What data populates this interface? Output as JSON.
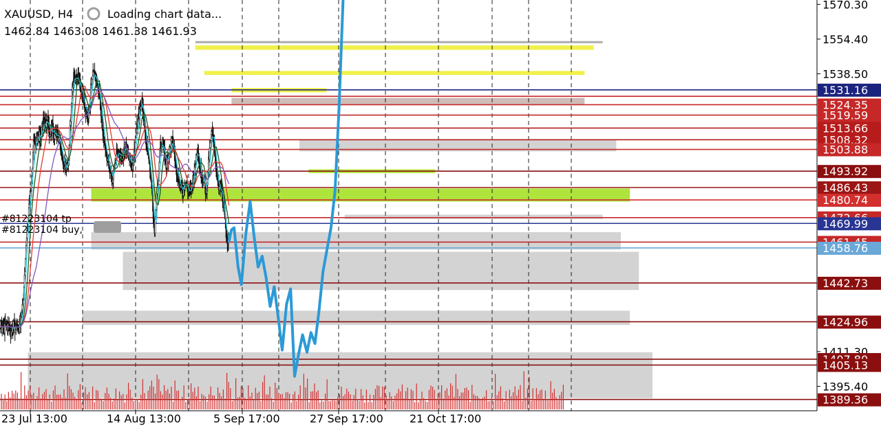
{
  "header": {
    "symbol_timeframe": "XAUUSD, H4",
    "loading_text": "Loading chart data...",
    "ohlc": "1462.84 1463.08 1461.38 1461.93"
  },
  "order_labels": [
    "#81223104 tp",
    "#81223104 buy,"
  ],
  "chart_data": {
    "type": "candlestick",
    "symbol": "XAUUSD",
    "timeframe": "H4",
    "y_range": [
      1384.2,
      1572.3
    ],
    "y_ticks": [
      1570.3,
      1554.4,
      1538.5,
      1411.3,
      1395.4
    ],
    "x_labels": [
      "23 Jul 13:00",
      "14 Aug 13:00",
      "5 Sep 17:00",
      "27 Sep 17:00",
      "21 Oct 17:00"
    ],
    "price_levels": [
      {
        "value": 1531.16,
        "label": "1531.16",
        "color": "#1a237e"
      },
      {
        "value": 1528.2,
        "label": "",
        "color": "#c62828"
      },
      {
        "value": 1524.35,
        "label": "1524.35",
        "color": "#c62828"
      },
      {
        "value": 1519.59,
        "label": "1519.59",
        "color": "#c62828"
      },
      {
        "value": 1513.66,
        "label": "1513.66",
        "color": "#b71c1c"
      },
      {
        "value": 1508.32,
        "label": "1508.32",
        "color": "#b71c1c"
      },
      {
        "value": 1503.88,
        "label": "1503.88",
        "color": "#c62828"
      },
      {
        "value": 1493.92,
        "label": "1493.92",
        "color": "#8b0f0f"
      },
      {
        "value": 1486.43,
        "label": "1486.43",
        "color": "#9c1616"
      },
      {
        "value": 1480.74,
        "label": "1480.74",
        "color": "#d32f2f"
      },
      {
        "value": 1472.66,
        "label": "1472.66",
        "color": "#c62828"
      },
      {
        "value": 1469.99,
        "label": "1469.99",
        "color": "#283593"
      },
      {
        "value": 1461.45,
        "label": "1461.45",
        "color": "#c62828"
      },
      {
        "value": 1458.76,
        "label": "1458.76",
        "color": "#6aa8d8"
      },
      {
        "value": 1442.73,
        "label": "1442.73",
        "color": "#8b0f0f"
      },
      {
        "value": 1424.96,
        "label": "1424.96",
        "color": "#8b0f0f"
      },
      {
        "value": 1407.8,
        "label": "1407.80",
        "color": "#8b0f0f"
      },
      {
        "value": 1405.13,
        "label": "1405.13",
        "color": "#8b0f0f"
      },
      {
        "value": 1389.36,
        "label": "1389.36",
        "color": "#8b0f0f"
      }
    ],
    "zones": [
      {
        "from": 1552.5,
        "to": 1553.5,
        "start": "29 Aug",
        "end": "27 Nov",
        "color": "#b0b0b0"
      },
      {
        "from": 1549.5,
        "to": 1551.5,
        "start": "29 Aug",
        "end": "25 Nov",
        "color": "#f0f04a"
      },
      {
        "from": 1538.0,
        "to": 1539.8,
        "start": "31 Aug",
        "end": "23 Nov",
        "color": "#f0f04a"
      },
      {
        "from": 1530.0,
        "to": 1532.0,
        "start": "6 Sep",
        "end": "27 Sep",
        "color": "#f0f04a"
      },
      {
        "from": 1524.5,
        "to": 1527.5,
        "start": "6 Sep",
        "end": "23 Nov",
        "color": "#cfbcb8"
      },
      {
        "from": 1503.0,
        "to": 1508.5,
        "start": "21 Sep",
        "end": "30 Nov",
        "color": "#d3d3d3"
      },
      {
        "from": 1493.0,
        "to": 1494.8,
        "start": "23 Sep",
        "end": "21 Oct",
        "color": "#b8e84a"
      },
      {
        "from": 1480.0,
        "to": 1486.0,
        "start": "6 Aug",
        "end": "3 Dec",
        "color": "#aee43c"
      },
      {
        "from": 1472.0,
        "to": 1474.0,
        "start": "1 Oct",
        "end": "27 Nov",
        "color": "#d3d3d3"
      },
      {
        "from": 1458.0,
        "to": 1466.0,
        "start": "6 Aug",
        "end": "1 Dec",
        "color": "#d3d3d3"
      },
      {
        "from": 1439.5,
        "to": 1457.0,
        "start": "13 Aug",
        "end": "5 Dec",
        "color": "#d3d3d3"
      },
      {
        "from": 1423.5,
        "to": 1430.0,
        "start": "4 Aug",
        "end": "3 Dec",
        "color": "#d3d3d3"
      },
      {
        "from": 1390.0,
        "to": 1411.0,
        "start": "23 Jul",
        "end": "8 Dec",
        "color": "#d3d3d3"
      }
    ],
    "price_path": [
      [
        1420,
        1423
      ],
      [
        1432,
        1422
      ],
      [
        1441,
        1424
      ],
      [
        1452,
        1421
      ],
      [
        1462,
        1423
      ],
      [
        1472,
        1422
      ],
      [
        1482,
        1424
      ],
      [
        1490,
        1436
      ],
      [
        1497,
        1456
      ],
      [
        1503,
        1469
      ],
      [
        1508,
        1479
      ],
      [
        1513,
        1485
      ],
      [
        1520,
        1505
      ],
      [
        1528,
        1507
      ],
      [
        1535,
        1511
      ],
      [
        1542,
        1509
      ],
      [
        1550,
        1517
      ],
      [
        1556,
        1514
      ],
      [
        1562,
        1519
      ],
      [
        1568,
        1511
      ],
      [
        1575,
        1514
      ],
      [
        1582,
        1510
      ],
      [
        1590,
        1511
      ],
      [
        1597,
        1509
      ],
      [
        1604,
        1503
      ],
      [
        1611,
        1497
      ],
      [
        1618,
        1494
      ],
      [
        1626,
        1502
      ],
      [
        1633,
        1522
      ],
      [
        1640,
        1538
      ],
      [
        1645,
        1534
      ],
      [
        1650,
        1539
      ],
      [
        1656,
        1534
      ],
      [
        1661,
        1533
      ],
      [
        1668,
        1528
      ],
      [
        1674,
        1524
      ],
      [
        1680,
        1520
      ],
      [
        1686,
        1521
      ],
      [
        1692,
        1531
      ],
      [
        1698,
        1537
      ],
      [
        1704,
        1539
      ],
      [
        1710,
        1534
      ],
      [
        1717,
        1530
      ],
      [
        1723,
        1521
      ],
      [
        1730,
        1509
      ],
      [
        1737,
        1504
      ],
      [
        1743,
        1498
      ],
      [
        1750,
        1494
      ],
      [
        1757,
        1490
      ],
      [
        1763,
        1497
      ],
      [
        1770,
        1501
      ],
      [
        1776,
        1503
      ],
      [
        1782,
        1500
      ],
      [
        1789,
        1502
      ],
      [
        1795,
        1506
      ],
      [
        1801,
        1502
      ],
      [
        1807,
        1499
      ],
      [
        1814,
        1497
      ],
      [
        1820,
        1500
      ],
      [
        1826,
        1509
      ],
      [
        1832,
        1516
      ],
      [
        1839,
        1522
      ],
      [
        1845,
        1527
      ],
      [
        1851,
        1517
      ],
      [
        1857,
        1508
      ],
      [
        1863,
        1502
      ],
      [
        1870,
        1493
      ],
      [
        1876,
        1483
      ],
      [
        1882,
        1464
      ],
      [
        1887,
        1477
      ],
      [
        1893,
        1490
      ],
      [
        1899,
        1504
      ],
      [
        1905,
        1508
      ],
      [
        1911,
        1502
      ],
      [
        1918,
        1497
      ],
      [
        1924,
        1502
      ],
      [
        1930,
        1505
      ],
      [
        1937,
        1508
      ],
      [
        1943,
        1500
      ],
      [
        1949,
        1494
      ],
      [
        1955,
        1490
      ],
      [
        1961,
        1486
      ],
      [
        1967,
        1485
      ],
      [
        1974,
        1490
      ],
      [
        1980,
        1486
      ],
      [
        1986,
        1484
      ],
      [
        1992,
        1486
      ],
      [
        1998,
        1491
      ],
      [
        2004,
        1496
      ],
      [
        2011,
        1507
      ],
      [
        2017,
        1495
      ],
      [
        2023,
        1493
      ],
      [
        2030,
        1490
      ],
      [
        2036,
        1484
      ],
      [
        2042,
        1494
      ],
      [
        2049,
        1506
      ],
      [
        2055,
        1512
      ],
      [
        2061,
        1507
      ],
      [
        2067,
        1495
      ],
      [
        2074,
        1485
      ],
      [
        2080,
        1487
      ],
      [
        2086,
        1482
      ],
      [
        2092,
        1472
      ],
      [
        2098,
        1464
      ],
      [
        2105,
        1461.9
      ]
    ],
    "forecast_path": [
      [
        2105,
        1461.9
      ],
      [
        2112,
        1467
      ],
      [
        2120,
        1468
      ],
      [
        2132,
        1450
      ],
      [
        2142,
        1442
      ],
      [
        2155,
        1465
      ],
      [
        2168,
        1480
      ],
      [
        2180,
        1464
      ],
      [
        2192,
        1450
      ],
      [
        2204,
        1455
      ],
      [
        2216,
        1445
      ],
      [
        2228,
        1432
      ],
      [
        2240,
        1441
      ],
      [
        2252,
        1427
      ],
      [
        2264,
        1412
      ],
      [
        2277,
        1433
      ],
      [
        2289,
        1440
      ],
      [
        2301,
        1400
      ],
      [
        2313,
        1410
      ],
      [
        2325,
        1419
      ],
      [
        2338,
        1411
      ],
      [
        2350,
        1420
      ],
      [
        2362,
        1415
      ],
      [
        2374,
        1430
      ],
      [
        2386,
        1448
      ],
      [
        2398,
        1458
      ],
      [
        2410,
        1468
      ],
      [
        2422,
        1485
      ],
      [
        2434,
        1523
      ],
      [
        2446,
        1572
      ]
    ],
    "moving_averages": [
      {
        "period": 10,
        "color": "#26c6da"
      },
      {
        "period": 20,
        "color": "#1b5e20"
      },
      {
        "period": 50,
        "color": "#e53935"
      },
      {
        "period": 100,
        "color": "#7e57c2"
      }
    ],
    "grid": {
      "vertical_dashed": true,
      "horizontal": false
    },
    "volume_histogram": true
  }
}
